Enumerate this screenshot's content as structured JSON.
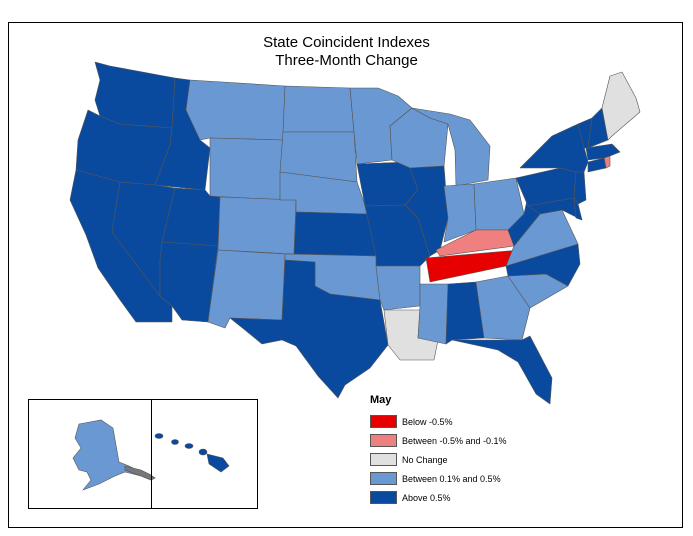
{
  "title": {
    "line1": "State Coincident Indexes",
    "line2": "Three-Month Change"
  },
  "legend": {
    "title": "May",
    "items": [
      {
        "label": "Below -0.5%",
        "color": "#e60000"
      },
      {
        "label": "Between -0.5% and -0.1%",
        "color": "#f08080"
      },
      {
        "label": "No Change",
        "color": "#e0e0e0"
      },
      {
        "label": "Between 0.1% and 0.5%",
        "color": "#6a98d2"
      },
      {
        "label": "Above 0.5%",
        "color": "#0a4a9e"
      }
    ]
  },
  "colors": {
    "above": "#0a4a9e",
    "between_pos": "#6a98d2",
    "no_change": "#e0e0e0",
    "between_neg": "#f08080",
    "below": "#e60000",
    "border": "#555555"
  }
}
